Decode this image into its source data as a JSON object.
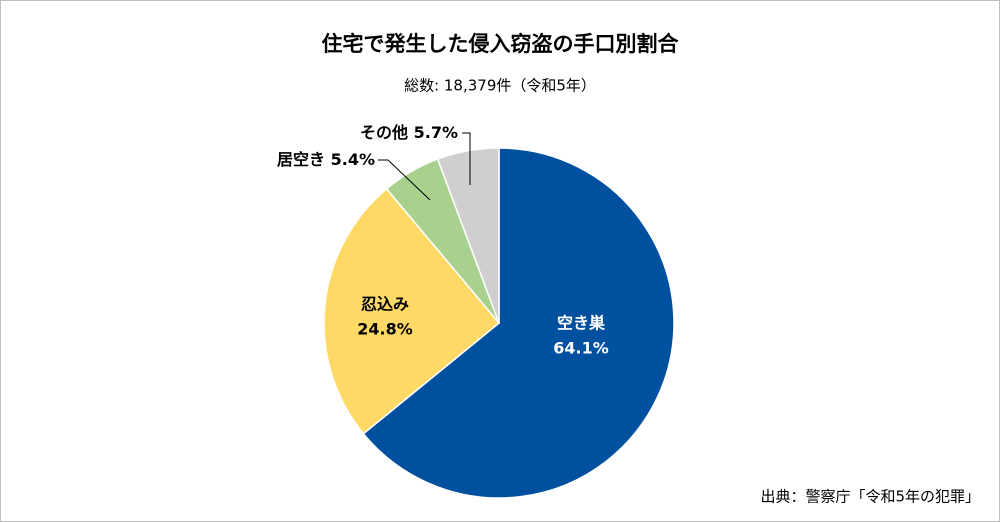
{
  "chart_data": {
    "type": "pie",
    "title": "住宅で発生した侵入窃盗の手口別割合",
    "subtitle": "総数: 18,379件（令和5年）",
    "source": "出典：警察庁「令和5年の犯罪」",
    "categories": [
      "空き巣",
      "忍込み",
      "居空き",
      "その他"
    ],
    "values": [
      64.1,
      24.8,
      5.4,
      5.7
    ],
    "value_labels": [
      "64.1%",
      "24.8%",
      "5.4%",
      "5.7%"
    ],
    "colors": [
      "#0050a0",
      "#ffd966",
      "#a9d18e",
      "#d0cece"
    ]
  }
}
